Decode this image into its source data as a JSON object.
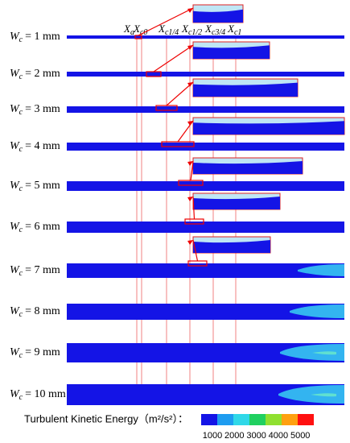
{
  "symbol": {
    "main": "W",
    "sub": "c"
  },
  "rows": [
    "= 1 mm",
    "= 2 mm",
    "= 3 mm",
    "= 4 mm",
    "= 5 mm",
    "= 6 mm",
    "= 7 mm",
    "= 8 mm",
    "= 9 mm",
    "= 10 mm"
  ],
  "positions": {
    "main": "X",
    "subs": [
      "a",
      "c0",
      "c1/4",
      "c1/2",
      "c3/4",
      "c1"
    ]
  },
  "legend": {
    "title": "Turbulent Kinetic Energy（m²/s²）：",
    "ticks": [
      "1000",
      "2000",
      "3000",
      "4000",
      "5000"
    ]
  }
}
